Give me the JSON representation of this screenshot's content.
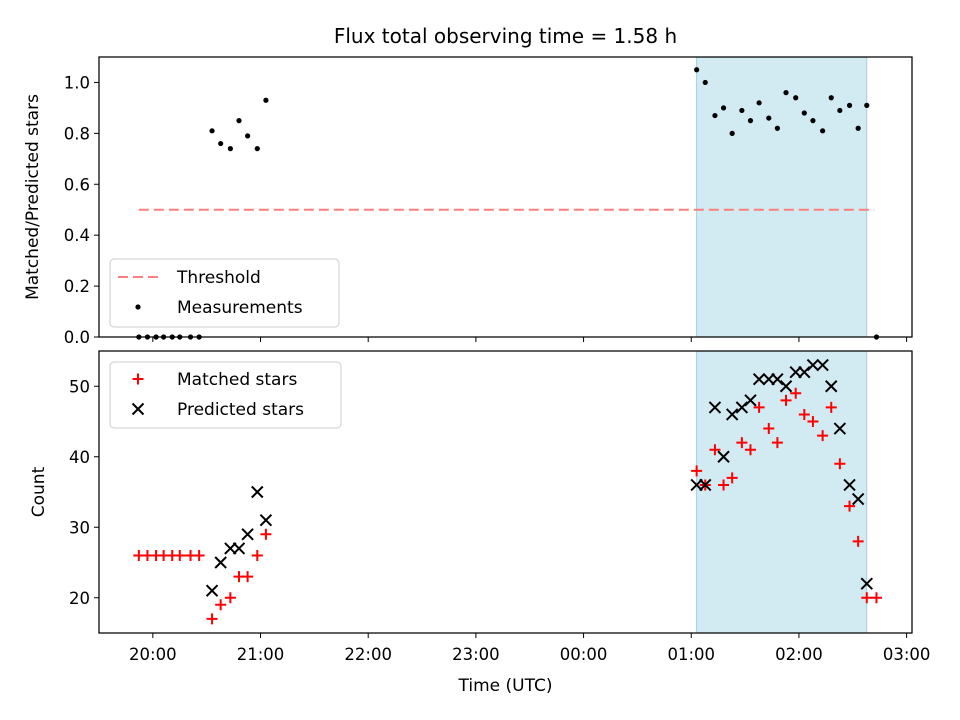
{
  "chart_data": [
    {
      "type": "scatter",
      "title": "Flux total observing time = 1.58 h",
      "xlabel": "",
      "ylabel": "Matched/Predicted stars",
      "xlim": [
        19.5,
        27.05
      ],
      "ylim": [
        0.0,
        1.1
      ],
      "yticks": [
        0.0,
        0.2,
        0.4,
        0.6,
        0.8,
        1.0
      ],
      "ytick_labels": [
        "0.0",
        "0.2",
        "0.4",
        "0.6",
        "0.8",
        "1.0"
      ],
      "xticks": [
        20,
        21,
        22,
        23,
        24,
        25,
        26,
        27
      ],
      "grid": false,
      "legend_position": "lower-left",
      "observing_window": [
        25.05,
        26.63
      ],
      "threshold": {
        "name": "Threshold",
        "value": 0.5,
        "x": [
          19.87,
          26.7
        ],
        "color": "#ff7f7f"
      },
      "series": [
        {
          "name": "Measurements",
          "color": "#000000",
          "marker": "dot",
          "points": [
            [
              19.87,
              0.0
            ],
            [
              19.95,
              0.0
            ],
            [
              20.03,
              0.0
            ],
            [
              20.1,
              0.0
            ],
            [
              20.18,
              0.0
            ],
            [
              20.25,
              0.0
            ],
            [
              20.35,
              0.0
            ],
            [
              20.43,
              0.0
            ],
            [
              20.55,
              0.81
            ],
            [
              20.63,
              0.76
            ],
            [
              20.72,
              0.74
            ],
            [
              20.8,
              0.85
            ],
            [
              20.88,
              0.79
            ],
            [
              20.97,
              0.74
            ],
            [
              21.05,
              0.93
            ],
            [
              25.05,
              1.05
            ],
            [
              25.13,
              1.0
            ],
            [
              25.22,
              0.87
            ],
            [
              25.3,
              0.9
            ],
            [
              25.38,
              0.8
            ],
            [
              25.47,
              0.89
            ],
            [
              25.55,
              0.85
            ],
            [
              25.63,
              0.92
            ],
            [
              25.72,
              0.86
            ],
            [
              25.8,
              0.82
            ],
            [
              25.88,
              0.96
            ],
            [
              25.97,
              0.94
            ],
            [
              26.05,
              0.88
            ],
            [
              26.13,
              0.85
            ],
            [
              26.22,
              0.81
            ],
            [
              26.3,
              0.94
            ],
            [
              26.38,
              0.89
            ],
            [
              26.47,
              0.91
            ],
            [
              26.55,
              0.82
            ],
            [
              26.63,
              0.91
            ],
            [
              26.72,
              0.0
            ]
          ]
        }
      ]
    },
    {
      "type": "scatter",
      "title": "",
      "xlabel": "Time (UTC)",
      "ylabel": "Count",
      "xlim": [
        19.5,
        27.05
      ],
      "ylim": [
        15,
        55
      ],
      "yticks": [
        20,
        30,
        40,
        50
      ],
      "ytick_labels": [
        "20",
        "30",
        "40",
        "50"
      ],
      "xticks": [
        20,
        21,
        22,
        23,
        24,
        25,
        26,
        27
      ],
      "xtick_labels": [
        "20:00",
        "21:00",
        "22:00",
        "23:00",
        "00:00",
        "01:00",
        "02:00",
        "03:00"
      ],
      "grid": false,
      "legend_position": "upper-left",
      "observing_window": [
        25.05,
        26.63
      ],
      "series": [
        {
          "name": "Matched stars",
          "color": "#ff0000",
          "marker": "plus",
          "points": [
            [
              19.87,
              26
            ],
            [
              19.95,
              26
            ],
            [
              20.03,
              26
            ],
            [
              20.1,
              26
            ],
            [
              20.18,
              26
            ],
            [
              20.25,
              26
            ],
            [
              20.35,
              26
            ],
            [
              20.43,
              26
            ],
            [
              20.55,
              17
            ],
            [
              20.63,
              19
            ],
            [
              20.72,
              20
            ],
            [
              20.8,
              23
            ],
            [
              20.88,
              23
            ],
            [
              20.97,
              26
            ],
            [
              21.05,
              29
            ],
            [
              25.05,
              38
            ],
            [
              25.13,
              36
            ],
            [
              25.22,
              41
            ],
            [
              25.3,
              36
            ],
            [
              25.38,
              37
            ],
            [
              25.47,
              42
            ],
            [
              25.55,
              41
            ],
            [
              25.63,
              47
            ],
            [
              25.72,
              44
            ],
            [
              25.8,
              42
            ],
            [
              25.88,
              48
            ],
            [
              25.97,
              49
            ],
            [
              26.05,
              46
            ],
            [
              26.13,
              45
            ],
            [
              26.22,
              43
            ],
            [
              26.3,
              47
            ],
            [
              26.38,
              39
            ],
            [
              26.47,
              33
            ],
            [
              26.55,
              28
            ],
            [
              26.63,
              20
            ],
            [
              26.72,
              20
            ]
          ]
        },
        {
          "name": "Predicted stars",
          "color": "#000000",
          "marker": "x",
          "points": [
            [
              20.55,
              21
            ],
            [
              20.63,
              25
            ],
            [
              20.72,
              27
            ],
            [
              20.8,
              27
            ],
            [
              20.88,
              29
            ],
            [
              20.97,
              35
            ],
            [
              21.05,
              31
            ],
            [
              25.05,
              36
            ],
            [
              25.13,
              36
            ],
            [
              25.22,
              47
            ],
            [
              25.3,
              40
            ],
            [
              25.38,
              46
            ],
            [
              25.47,
              47
            ],
            [
              25.55,
              48
            ],
            [
              25.63,
              51
            ],
            [
              25.72,
              51
            ],
            [
              25.8,
              51
            ],
            [
              25.88,
              50
            ],
            [
              25.97,
              52
            ],
            [
              26.05,
              52
            ],
            [
              26.13,
              53
            ],
            [
              26.22,
              53
            ],
            [
              26.3,
              50
            ],
            [
              26.38,
              44
            ],
            [
              26.47,
              36
            ],
            [
              26.55,
              34
            ],
            [
              26.63,
              22
            ]
          ]
        }
      ]
    }
  ]
}
